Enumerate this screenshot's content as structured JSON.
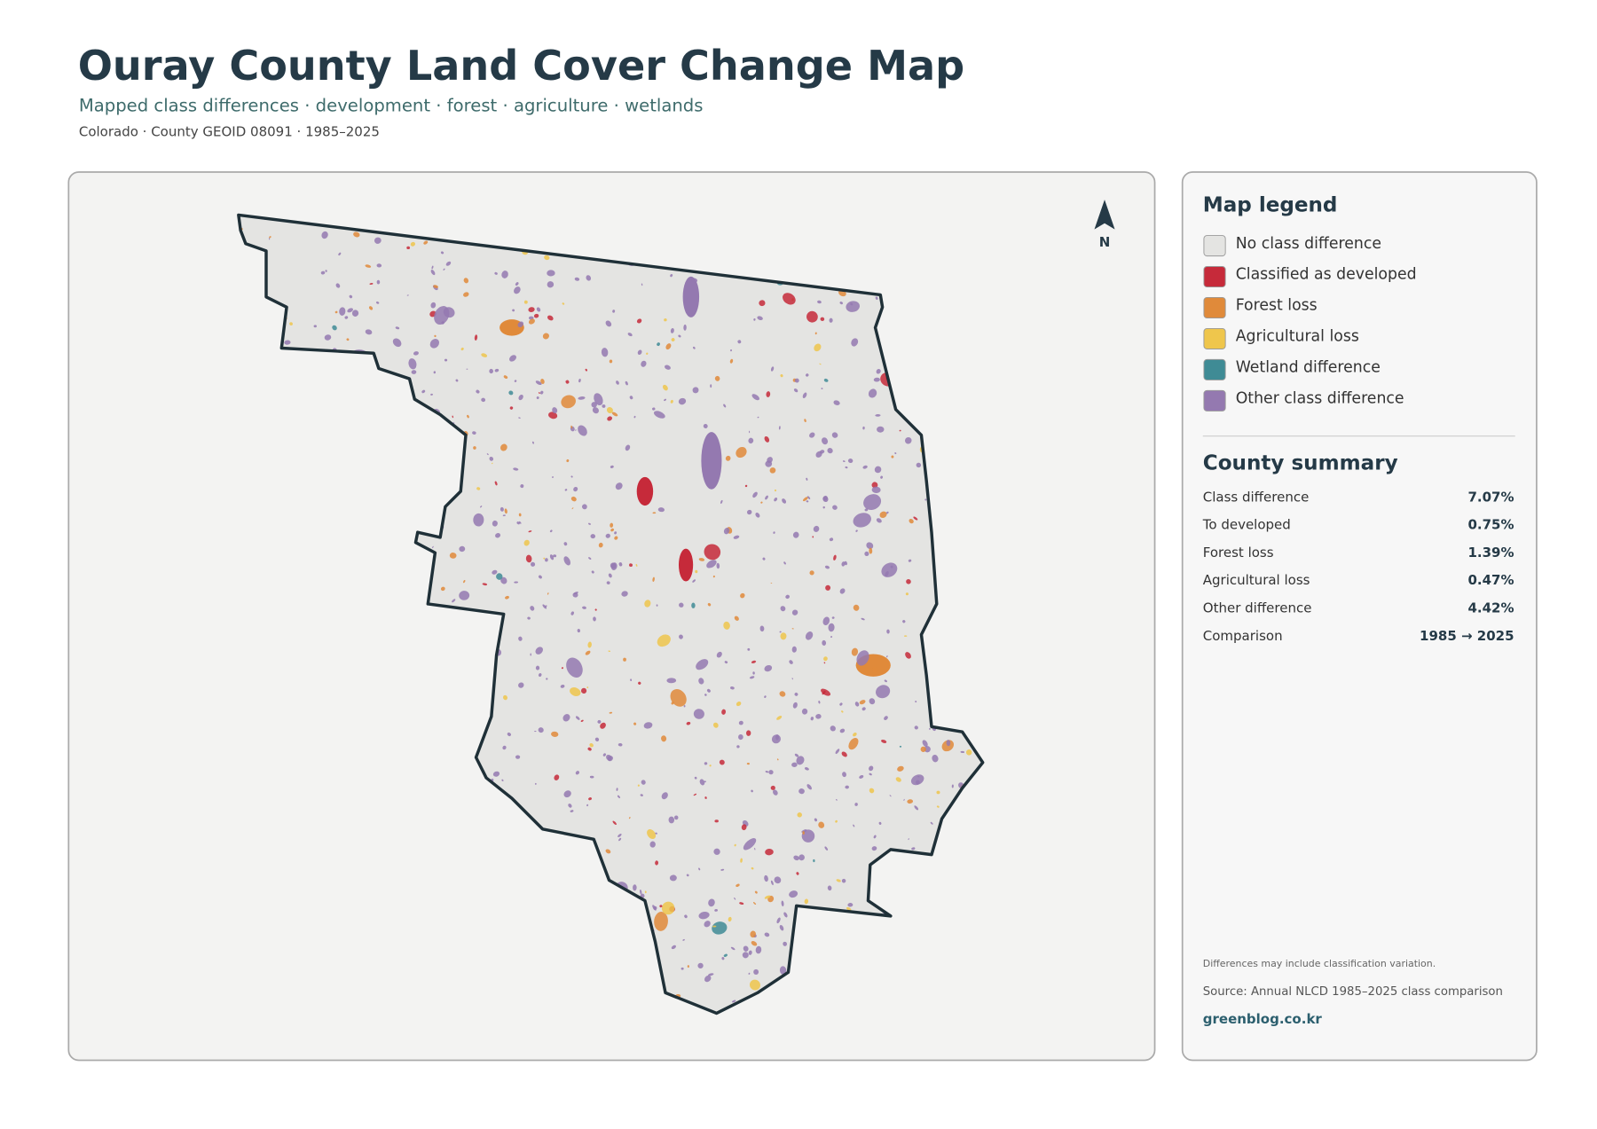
{
  "header": {
    "title": "Ouray County Land Cover Change Map",
    "subtitle": "Mapped class differences · development · forest · agriculture · wetlands",
    "meta": "Colorado · County GEOID 08091 · 1985–2025"
  },
  "map": {
    "north": "N"
  },
  "legend": {
    "title": "Map legend",
    "items": [
      {
        "label": "No class difference",
        "color": "#e4e4e2"
      },
      {
        "label": "Classified as developed",
        "color": "#c62a3a"
      },
      {
        "label": "Forest loss",
        "color": "#e08a3a"
      },
      {
        "label": "Agricultural loss",
        "color": "#efc64c"
      },
      {
        "label": "Wetland difference",
        "color": "#3f8b95"
      },
      {
        "label": "Other class difference",
        "color": "#9479b0"
      }
    ]
  },
  "summary": {
    "title": "County summary",
    "rows": [
      [
        "Class difference",
        "7.07%"
      ],
      [
        "To developed",
        "0.75%"
      ],
      [
        "Forest loss",
        "1.39%"
      ],
      [
        "Agricultural loss",
        "0.47%"
      ],
      [
        "Other difference",
        "4.42%"
      ],
      [
        "Comparison",
        "1985 → 2025"
      ]
    ]
  },
  "notes": {
    "caveat": "Differences may include classification variation.",
    "source": "Source: Annual NLCD 1985–2025 class comparison",
    "site": "greenblog.co.kr"
  }
}
